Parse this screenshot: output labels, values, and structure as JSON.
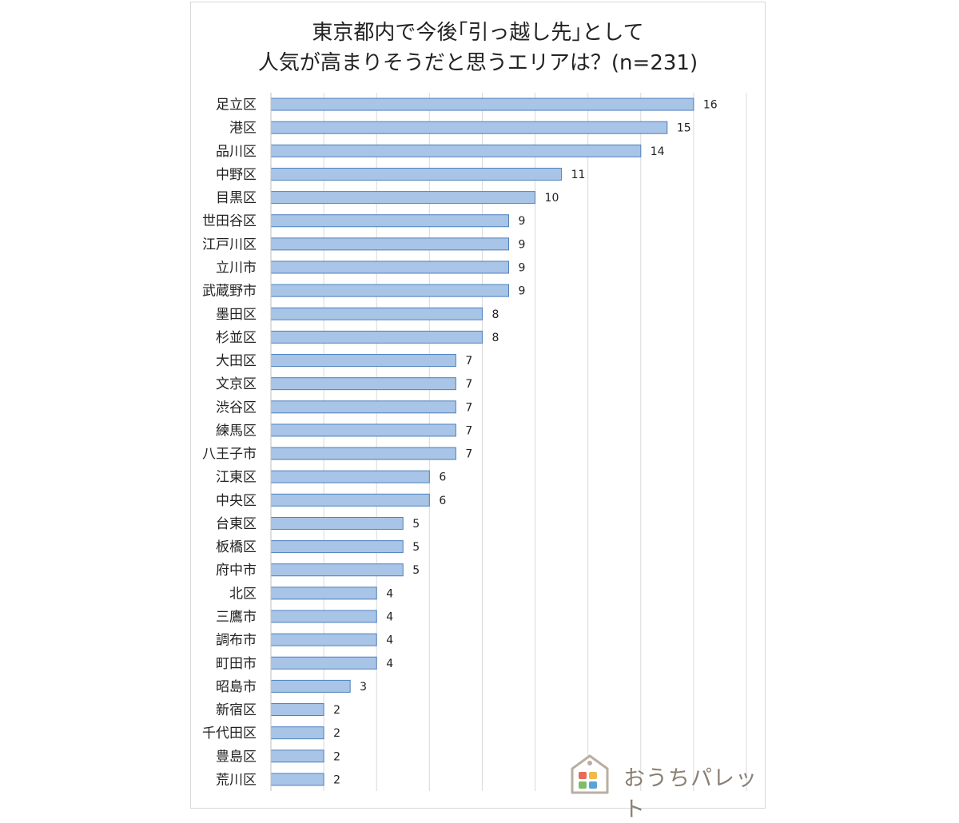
{
  "chart_data": {
    "type": "bar",
    "orientation": "horizontal",
    "title_line1": "東京都内で今後｢引っ越し先｣として",
    "title_line2": "人気が高まりそうだと思うエリアは？(n=231)",
    "categories": [
      "足立区",
      "港区",
      "品川区",
      "中野区",
      "目黒区",
      "世田谷区",
      "江戸川区",
      "立川市",
      "武蔵野市",
      "墨田区",
      "杉並区",
      "大田区",
      "文京区",
      "渋谷区",
      "練馬区",
      "八王子市",
      "江東区",
      "中央区",
      "台東区",
      "板橋区",
      "府中市",
      "北区",
      "三鷹市",
      "調布市",
      "町田市",
      "昭島市",
      "新宿区",
      "千代田区",
      "豊島区",
      "荒川区"
    ],
    "values": [
      16,
      15,
      14,
      11,
      10,
      9,
      9,
      9,
      9,
      8,
      8,
      7,
      7,
      7,
      7,
      7,
      6,
      6,
      5,
      5,
      5,
      4,
      4,
      4,
      4,
      3,
      2,
      2,
      2,
      2
    ],
    "xlim": [
      0,
      18
    ],
    "grid": true,
    "data_labels": true,
    "bar_color": "#a8c4e6",
    "bar_border_color": "#4f81bd",
    "grid_color": "#d9d9d9"
  },
  "logo": {
    "text": "おうちパレット",
    "icon": "house-palette-icon"
  }
}
